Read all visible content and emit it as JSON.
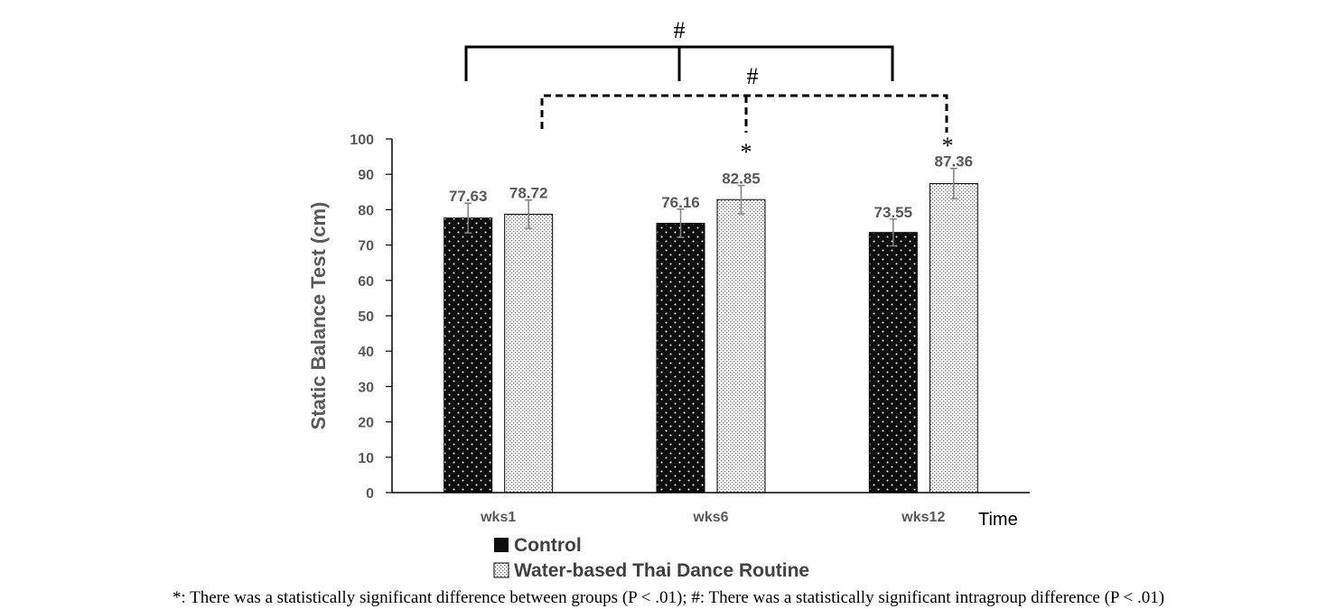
{
  "chart_data": {
    "type": "bar",
    "categories": [
      "wks1",
      "wks6",
      "wks12"
    ],
    "series": [
      {
        "name": "Control",
        "values": [
          77.63,
          76.16,
          73.55
        ],
        "labels": [
          "77.63",
          "76.16",
          "73.55"
        ],
        "errors": [
          4.2,
          4.0,
          3.8
        ],
        "color": "#0d0d0d"
      },
      {
        "name": "Water-based Thai Dance Routine",
        "values": [
          78.72,
          82.85,
          87.36
        ],
        "labels": [
          "78.72",
          "82.85",
          "87.36"
        ],
        "errors": [
          4.0,
          4.0,
          4.3
        ],
        "color": "#e8e8e8"
      }
    ],
    "ylabel": "Static Balance Test (cm)",
    "xlabel": "Time",
    "ylim": [
      0,
      100
    ],
    "yticks": [
      "0",
      "10",
      "20",
      "30",
      "40",
      "50",
      "60",
      "70",
      "80",
      "90",
      "100"
    ],
    "significance": {
      "between_groups_symbol": "*",
      "intragroup_symbol": "#"
    },
    "legend_position": "bottom-left",
    "caption": "*: There was a statistically significant difference between groups (P < .01); #: There was a statistically significant intragroup difference (P < .01)"
  }
}
